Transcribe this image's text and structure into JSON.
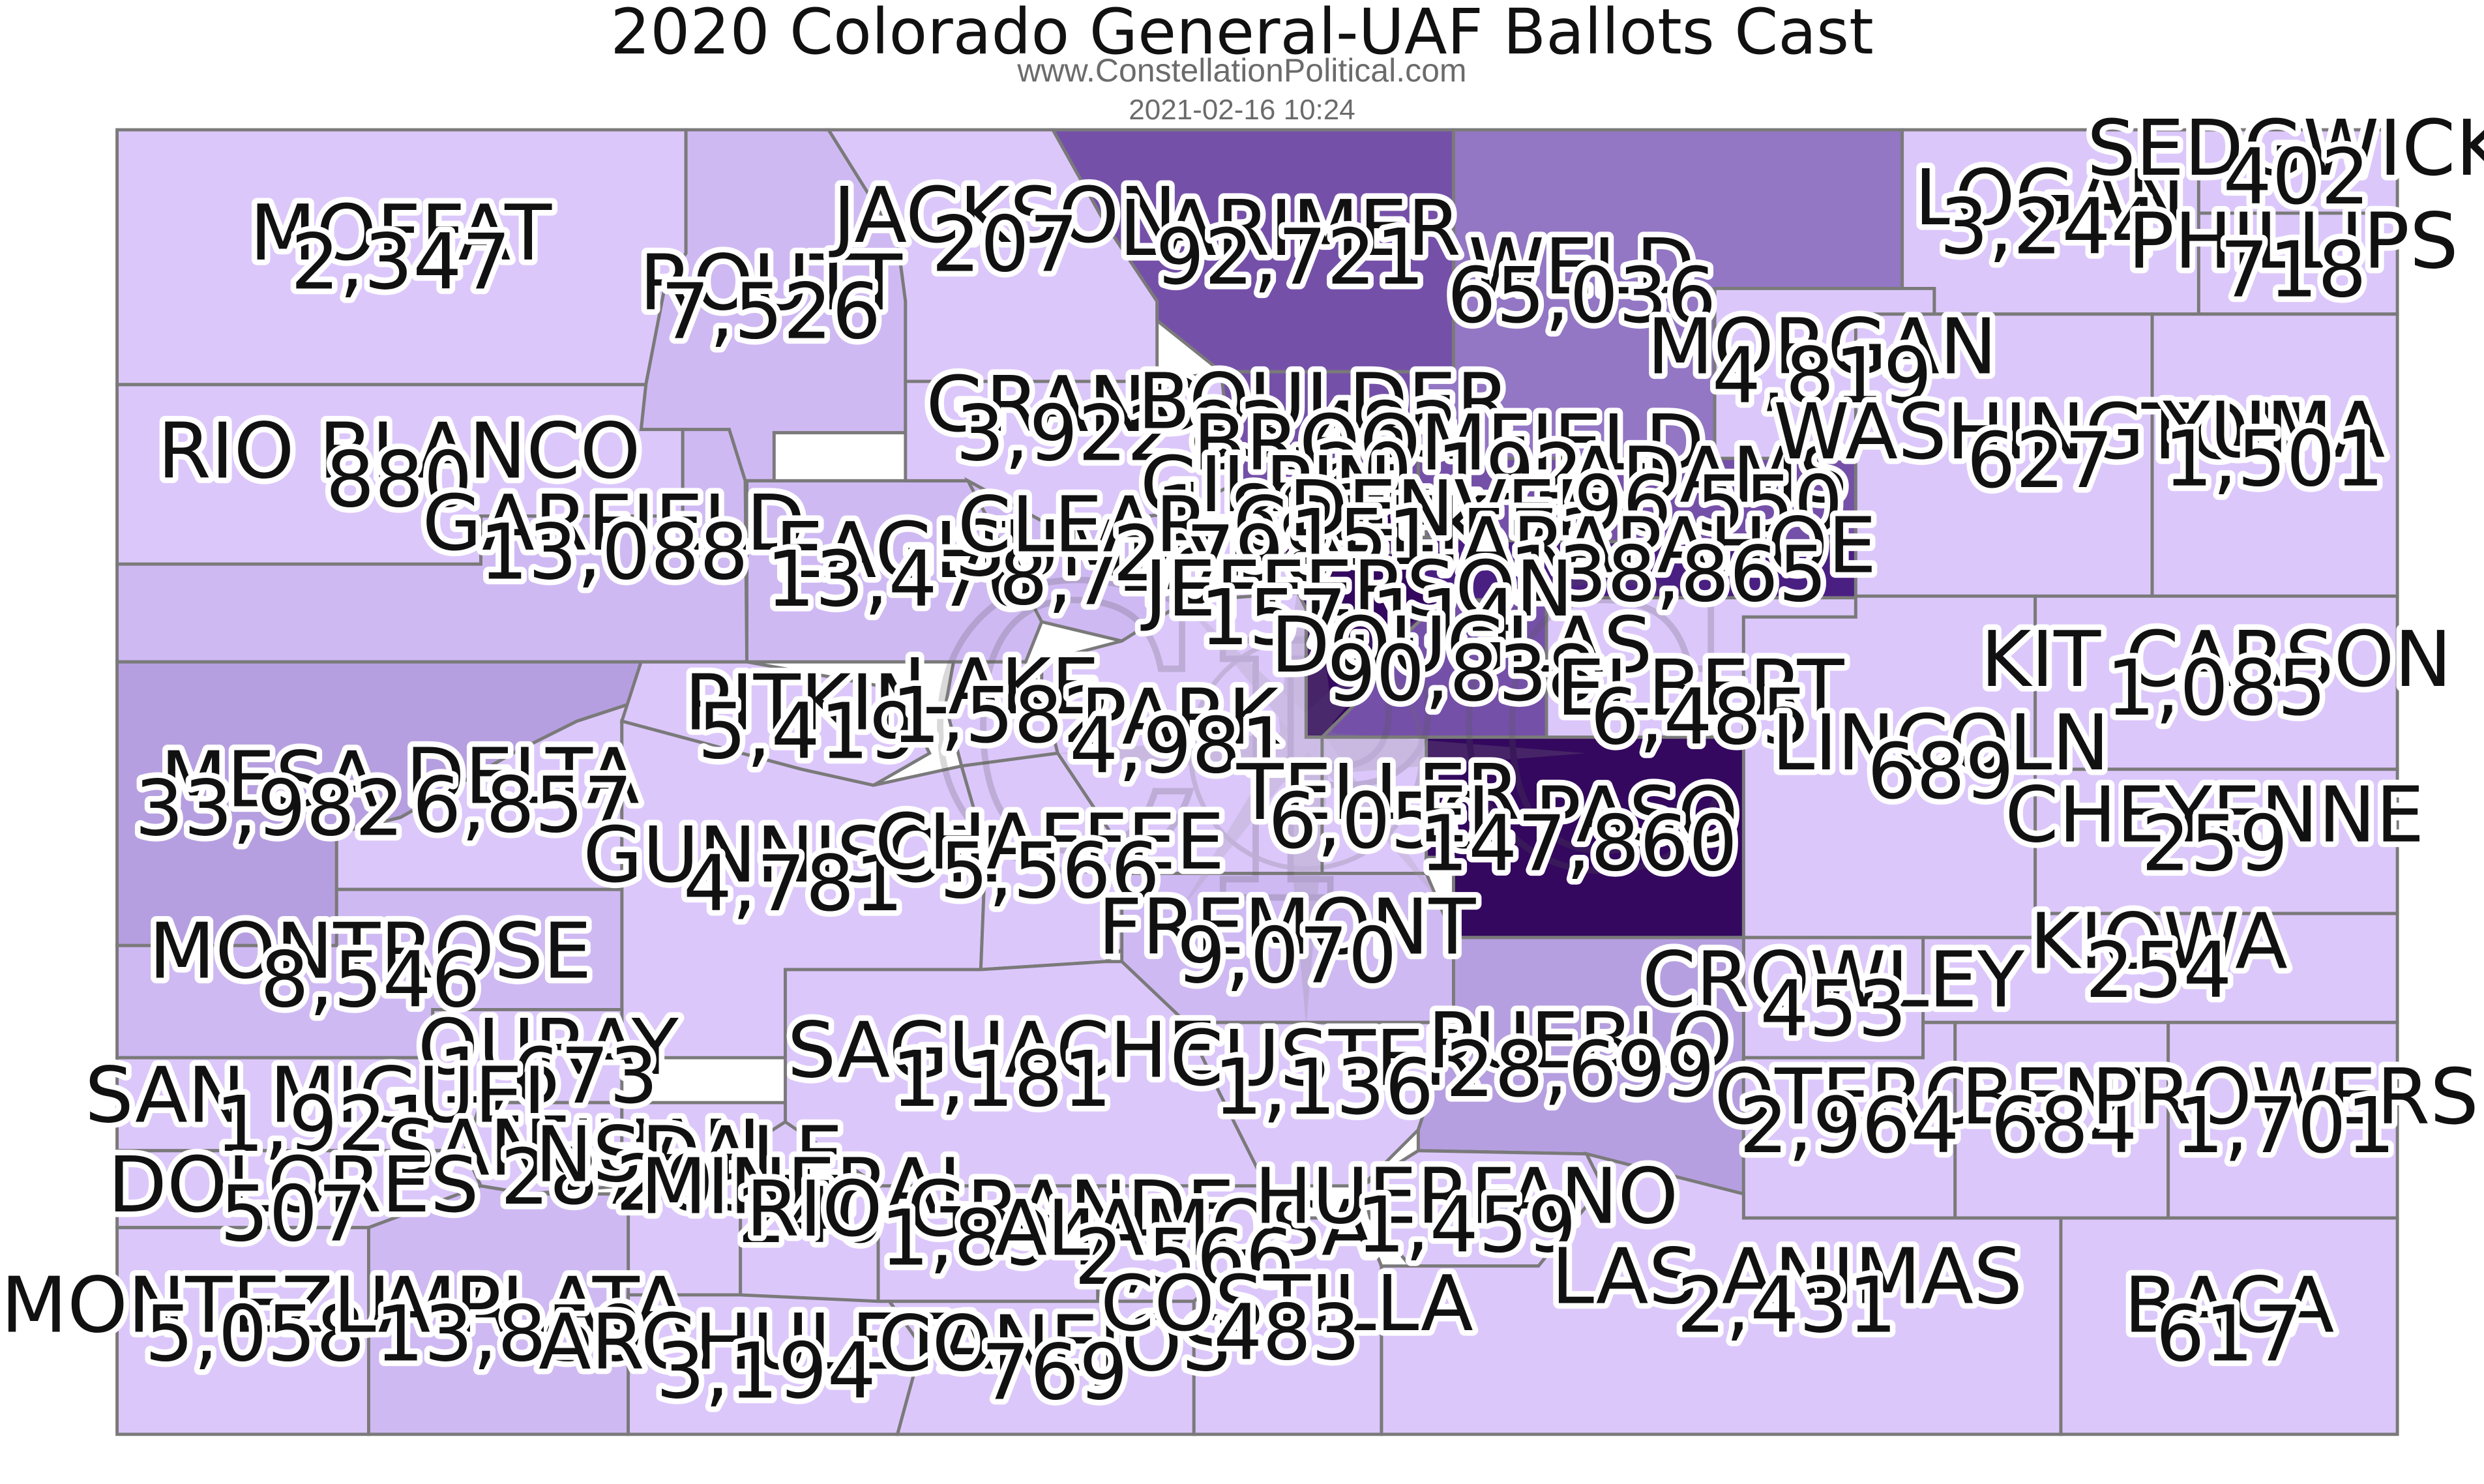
{
  "header": {
    "title": "2020 Colorado General-UAF Ballots Cast",
    "subtitle": "www.ConstellationPolitical.com",
    "timestamp": "2021-02-16 10:24"
  },
  "watermark": {
    "text": "CPC",
    "shape": "compass-rose"
  },
  "colors": {
    "tier1": "#dcc7fb",
    "tier2": "#cfb9f3",
    "tier3": "#b69fe0",
    "tier4": "#9376c4",
    "tier5": "#7550a8",
    "tier6": "#4a1f82",
    "tier7": "#33085e",
    "border": "#7a7a7a"
  },
  "counties": [
    {
      "id": "moffat",
      "name": "MOFFAT",
      "value": "2,347",
      "tier": "tier1"
    },
    {
      "id": "routt",
      "name": "ROUTT",
      "value": "7,526",
      "tier": "tier2"
    },
    {
      "id": "jackson",
      "name": "JACKSON",
      "value": "207",
      "tier": "tier1"
    },
    {
      "id": "larimer",
      "name": "LARIMER",
      "value": "92,721",
      "tier": "tier5"
    },
    {
      "id": "weld",
      "name": "WELD",
      "value": "65,036",
      "tier": "tier4"
    },
    {
      "id": "logan",
      "name": "LOGAN",
      "value": "3,244",
      "tier": "tier1"
    },
    {
      "id": "sedgwick",
      "name": "SEDGWICK",
      "value": "402",
      "tier": "tier1"
    },
    {
      "id": "phillips",
      "name": "PHILLIPS",
      "value": "718",
      "tier": "tier1"
    },
    {
      "id": "rio-blanco",
      "name": "RIO BLANCO",
      "value": "880",
      "tier": "tier1"
    },
    {
      "id": "garfield",
      "name": "GARFIELD",
      "value": "13,088",
      "tier": "tier2"
    },
    {
      "id": "eagle",
      "name": "EAGLE",
      "value": "13,476",
      "tier": "tier2"
    },
    {
      "id": "grand",
      "name": "GRAND",
      "value": "3,922",
      "tier": "tier1"
    },
    {
      "id": "summit",
      "name": "SUMMIT",
      "value": "8,740",
      "tier": "tier2"
    },
    {
      "id": "boulder",
      "name": "BOULDER",
      "value": "83,483",
      "tier": "tier5"
    },
    {
      "id": "broomfield",
      "name": "BROOMFIELD",
      "value": "20,192",
      "tier": "tier5"
    },
    {
      "id": "gilpin",
      "name": "GILPIN",
      "value": "1,882",
      "tier": "tier1"
    },
    {
      "id": "clear-creek",
      "name": "CLEAR CREEK",
      "value": "2,798",
      "tier": "tier1"
    },
    {
      "id": "denver",
      "name": "DENVER",
      "value": "151,573",
      "tier": "tier7"
    },
    {
      "id": "adams",
      "name": "ADAMS",
      "value": "96,550",
      "tier": "tier5"
    },
    {
      "id": "arapahoe",
      "name": "ARAPAHOE",
      "value": "138,865",
      "tier": "tier6"
    },
    {
      "id": "jefferson",
      "name": "JEFFERSON",
      "value": "157,114",
      "tier": "tier7"
    },
    {
      "id": "douglas",
      "name": "DOUGLAS",
      "value": "90,838",
      "tier": "tier5"
    },
    {
      "id": "morgan",
      "name": "MORGAN",
      "value": "4,819",
      "tier": "tier1"
    },
    {
      "id": "washington",
      "name": "WASHINGTON",
      "value": "627",
      "tier": "tier1"
    },
    {
      "id": "yuma",
      "name": "YUMA",
      "value": "1,501",
      "tier": "tier1"
    },
    {
      "id": "mesa",
      "name": "MESA",
      "value": "33,982",
      "tier": "tier3"
    },
    {
      "id": "delta",
      "name": "DELTA",
      "value": "6,857",
      "tier": "tier1"
    },
    {
      "id": "pitkin",
      "name": "PITKIN",
      "value": "5,419",
      "tier": "tier1"
    },
    {
      "id": "lake",
      "name": "LAKE",
      "value": "1,582",
      "tier": "tier1"
    },
    {
      "id": "park",
      "name": "PARK",
      "value": "4,981",
      "tier": "tier1"
    },
    {
      "id": "elbert",
      "name": "ELBERT",
      "value": "6,485",
      "tier": "tier1"
    },
    {
      "id": "lincoln",
      "name": "LINCOLN",
      "value": "689",
      "tier": "tier1"
    },
    {
      "id": "kit-carson",
      "name": "KIT CARSON",
      "value": "1,085",
      "tier": "tier1"
    },
    {
      "id": "cheyenne",
      "name": "CHEYENNE",
      "value": "259",
      "tier": "tier1"
    },
    {
      "id": "gunnison",
      "name": "GUNNISON",
      "value": "4,781",
      "tier": "tier1"
    },
    {
      "id": "chaffee",
      "name": "CHAFFEE",
      "value": "5,566",
      "tier": "tier1"
    },
    {
      "id": "teller",
      "name": "TELLER",
      "value": "6,050",
      "tier": "tier1"
    },
    {
      "id": "el-paso",
      "name": "EL PASO",
      "value": "147,860",
      "tier": "tier7"
    },
    {
      "id": "montrose",
      "name": "MONTROSE",
      "value": "8,546",
      "tier": "tier2"
    },
    {
      "id": "fremont",
      "name": "FREMONT",
      "value": "9,070",
      "tier": "tier2"
    },
    {
      "id": "kiowa",
      "name": "KIOWA",
      "value": "254",
      "tier": "tier1"
    },
    {
      "id": "crowley",
      "name": "CROWLEY",
      "value": "453",
      "tier": "tier1"
    },
    {
      "id": "ouray",
      "name": "OURAY",
      "value": "1,673",
      "tier": "tier1"
    },
    {
      "id": "saguache",
      "name": "SAGUACHE",
      "value": "1,181",
      "tier": "tier1"
    },
    {
      "id": "custer",
      "name": "CUSTER",
      "value": "1,136",
      "tier": "tier1"
    },
    {
      "id": "pueblo",
      "name": "PUEBLO",
      "value": "28,699",
      "tier": "tier3"
    },
    {
      "id": "san-miguel",
      "name": "SAN MIGUEL",
      "value": "1,921",
      "tier": "tier1"
    },
    {
      "id": "otero",
      "name": "OTERO",
      "value": "2,964",
      "tier": "tier1"
    },
    {
      "id": "bent",
      "name": "BENT",
      "value": "684",
      "tier": "tier1"
    },
    {
      "id": "prowers",
      "name": "PROWERS",
      "value": "1,701",
      "tier": "tier1"
    },
    {
      "id": "san-juan",
      "name": "SAN JUAN",
      "value": "287",
      "tier": "tier1"
    },
    {
      "id": "hinsdale",
      "name": "NSDALE",
      "value": "205",
      "tier": "tier1"
    },
    {
      "id": "dolores",
      "name": "DOLORES",
      "value": "507",
      "tier": "tier1"
    },
    {
      "id": "mineral",
      "name": "MINERAL",
      "value": "240",
      "tier": "tier1"
    },
    {
      "id": "rio-grande",
      "name": "RIO GRANDE",
      "value": "1,894",
      "tier": "tier1"
    },
    {
      "id": "alamosa",
      "name": "ALAMOSA",
      "value": "2,566",
      "tier": "tier1"
    },
    {
      "id": "huerfano",
      "name": "HUERFANO",
      "value": "1,459",
      "tier": "tier1"
    },
    {
      "id": "las-animas",
      "name": "LAS ANIMAS",
      "value": "2,431",
      "tier": "tier1"
    },
    {
      "id": "baca",
      "name": "BACA",
      "value": "617",
      "tier": "tier1"
    },
    {
      "id": "montezuma",
      "name": "MONTEZUMA",
      "value": "5,058",
      "tier": "tier1"
    },
    {
      "id": "la-plata",
      "name": "LA PLATA",
      "value": "13,859",
      "tier": "tier2"
    },
    {
      "id": "archuleta",
      "name": "ARCHULETA",
      "value": "3,194",
      "tier": "tier1"
    },
    {
      "id": "conejos",
      "name": "CONEJOS",
      "value": "769",
      "tier": "tier1"
    },
    {
      "id": "costilla",
      "name": "COSTILLA",
      "value": "483",
      "tier": "tier1"
    }
  ]
}
